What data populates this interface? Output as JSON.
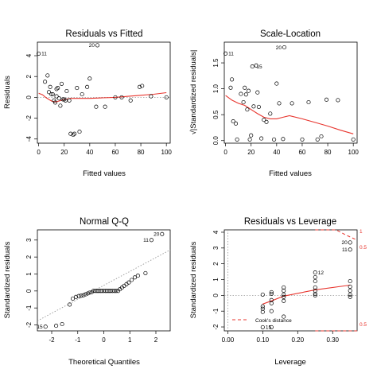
{
  "colors": {
    "fit": "#e8352e",
    "grid": "#999999",
    "frame": "#000000",
    "bg": "#ffffff"
  },
  "chart_data": [
    {
      "type": "scatter",
      "title": "Residuals vs Fitted",
      "xlabel": "Fitted values",
      "ylabel": "Residuals",
      "xlim": [
        -1,
        103
      ],
      "ylim": [
        -4.4,
        5.3
      ],
      "xticks": [
        "0",
        "20",
        "40",
        "60",
        "80",
        "100"
      ],
      "xtick_values": [
        0,
        20,
        40,
        60,
        80,
        100
      ],
      "yticks": [
        "-4",
        "-2",
        "0",
        "2",
        "4"
      ],
      "ytick_values": [
        -4,
        -2,
        0,
        2,
        4
      ],
      "hline": 0,
      "x": [
        0,
        5,
        7,
        8,
        9,
        10,
        11,
        12,
        13,
        14,
        14,
        15,
        16,
        17,
        18,
        19,
        20,
        21,
        22,
        24,
        25,
        27,
        28,
        30,
        32,
        34,
        38,
        40,
        45,
        46,
        52,
        60,
        65,
        72,
        79,
        81,
        88,
        100
      ],
      "y": [
        4.2,
        1.5,
        2.1,
        0.5,
        1.0,
        0.3,
        0.3,
        -0.3,
        -0.5,
        0.8,
        0.1,
        0.9,
        -0.1,
        -0.8,
        1.3,
        -0.2,
        -0.2,
        -0.3,
        0.6,
        -0.3,
        -3.5,
        -3.6,
        -3.5,
        0.9,
        -3.3,
        0.3,
        1.0,
        1.8,
        -0.9,
        5.0,
        -0.9,
        0.0,
        0.0,
        -0.3,
        1.0,
        1.1,
        0.1,
        0.0
      ],
      "fit_x": [
        0,
        3,
        6,
        10,
        13,
        16,
        20,
        25,
        30,
        40,
        50,
        60,
        70,
        80,
        90,
        100
      ],
      "fit_y": [
        0.4,
        0.25,
        -0.05,
        -0.35,
        -0.45,
        -0.35,
        -0.2,
        -0.1,
        -0.1,
        -0.1,
        -0.05,
        0.0,
        0.1,
        0.2,
        0.3,
        0.45
      ],
      "annotations": [
        {
          "label": "11",
          "x": 0,
          "y": 4.2,
          "side": "right"
        },
        {
          "label": "20",
          "x": 46,
          "y": 5.0,
          "side": "left"
        }
      ]
    },
    {
      "type": "scatter",
      "title": "Scale-Location",
      "xlabel": "Fitted values",
      "ylabel": "√|Standardized residuals|",
      "xlim": [
        -1,
        103
      ],
      "ylim": [
        -0.05,
        1.9
      ],
      "xticks": [
        "0",
        "20",
        "40",
        "60",
        "80",
        "100"
      ],
      "xtick_values": [
        0,
        20,
        40,
        60,
        80,
        100
      ],
      "yticks": [
        "0.0",
        "0.5",
        "1.0",
        "1.5"
      ],
      "ytick_values": [
        0,
        0.5,
        1.0,
        1.5
      ],
      "x": [
        0,
        4,
        5,
        6,
        8,
        9,
        12,
        14,
        15,
        16,
        17,
        18,
        19,
        20,
        21,
        22,
        24,
        25,
        26,
        28,
        30,
        32,
        35,
        38,
        40,
        42,
        45,
        46,
        52,
        60,
        65,
        72,
        75,
        79,
        88,
        100
      ],
      "y": [
        1.68,
        1.02,
        1.18,
        0.37,
        0.33,
        0.02,
        0.9,
        0.74,
        1.02,
        0.89,
        0.6,
        0.96,
        0.02,
        0.1,
        1.43,
        0.66,
        1.45,
        0.93,
        0.65,
        0.04,
        0.4,
        0.36,
        0.52,
        0.02,
        1.1,
        0.72,
        0.03,
        1.8,
        0.72,
        0.02,
        0.74,
        0.02,
        0.08,
        0.79,
        0.78,
        0.02
      ],
      "fit_x": [
        0,
        5,
        10,
        15,
        20,
        25,
        30,
        35,
        40,
        45,
        50,
        60,
        70,
        80,
        90,
        100
      ],
      "fit_y": [
        0.87,
        0.78,
        0.72,
        0.68,
        0.6,
        0.52,
        0.45,
        0.42,
        0.42,
        0.45,
        0.48,
        0.42,
        0.35,
        0.28,
        0.2,
        0.13
      ],
      "annotations": [
        {
          "label": "11",
          "x": 0,
          "y": 1.68,
          "side": "right"
        },
        {
          "label": "15",
          "x": 22,
          "y": 1.43,
          "side": "right"
        },
        {
          "label": "20",
          "x": 46,
          "y": 1.8,
          "side": "left"
        }
      ]
    },
    {
      "type": "scatter",
      "title": "Normal Q-Q",
      "xlabel": "Theoretical Quantiles",
      "ylabel": "Standardized residuals",
      "xlim": [
        -2.55,
        2.55
      ],
      "ylim": [
        -2.35,
        3.6
      ],
      "xticks": [
        "-2",
        "-1",
        "0",
        "1",
        "2"
      ],
      "xtick_values": [
        -2,
        -1,
        0,
        1,
        2
      ],
      "yticks": [
        "-2",
        "-1",
        "0",
        "1",
        "2",
        "3"
      ],
      "ytick_values": [
        -2,
        -1,
        0,
        1,
        2,
        3
      ],
      "x": [
        -2.24,
        -1.83,
        -1.6,
        -1.31,
        -1.19,
        -1.07,
        -0.96,
        -0.87,
        -0.78,
        -0.7,
        -0.62,
        -0.55,
        -0.47,
        -0.4,
        -0.33,
        -0.26,
        -0.2,
        -0.13,
        -0.07,
        0.0,
        0.07,
        0.13,
        0.2,
        0.26,
        0.33,
        0.4,
        0.47,
        0.55,
        0.62,
        0.7,
        0.78,
        0.87,
        0.96,
        1.07,
        1.19,
        1.31,
        1.6,
        1.83,
        2.24
      ],
      "y": [
        -2.1,
        -2.05,
        -1.95,
        -0.8,
        -0.45,
        -0.35,
        -0.3,
        -0.28,
        -0.25,
        -0.2,
        -0.15,
        -0.1,
        -0.08,
        0.0,
        0.0,
        0.0,
        0.0,
        0.0,
        0.0,
        0.0,
        0.0,
        0.0,
        0.0,
        0.0,
        0.0,
        0.0,
        0.0,
        0.0,
        0.1,
        0.2,
        0.3,
        0.4,
        0.5,
        0.65,
        0.8,
        0.9,
        1.05,
        3.0,
        3.35
      ],
      "ref_line": {
        "intercept": 0.33,
        "slope": 0.82
      },
      "annotations": [
        {
          "label": "15",
          "x": -2.24,
          "y": -2.1,
          "side": "left"
        },
        {
          "label": "11",
          "x": 1.83,
          "y": 3.0,
          "side": "left"
        },
        {
          "label": "20",
          "x": 2.24,
          "y": 3.35,
          "side": "left"
        }
      ]
    },
    {
      "type": "scatter",
      "title": "Residuals vs Leverage",
      "xlabel": "Leverage",
      "ylabel": "Standardized residuals",
      "xlim": [
        -0.01,
        0.37
      ],
      "ylim": [
        -2.25,
        4.15
      ],
      "xticks": [
        "0.00",
        "0.10",
        "0.20",
        "0.30"
      ],
      "xtick_values": [
        0.0,
        0.1,
        0.2,
        0.3
      ],
      "yticks": [
        "-2",
        "-1",
        "0",
        "1",
        "2",
        "3",
        "4"
      ],
      "ytick_values": [
        -2,
        -1,
        0,
        1,
        2,
        3,
        4
      ],
      "x": [
        0.1,
        0.1,
        0.1,
        0.1,
        0.1,
        0.125,
        0.125,
        0.125,
        0.125,
        0.125,
        0.125,
        0.16,
        0.16,
        0.16,
        0.16,
        0.16,
        0.16,
        0.25,
        0.25,
        0.25,
        0.25,
        0.25,
        0.25,
        0.25,
        0.35,
        0.35,
        0.35,
        0.35,
        0.35,
        0.35,
        0.35
      ],
      "y": [
        -0.85,
        -1.05,
        -0.7,
        0.05,
        -2.02,
        -0.5,
        -0.3,
        -1.0,
        0.1,
        0.2,
        -2.02,
        -0.35,
        -0.1,
        0.3,
        0.5,
        0.05,
        -1.35,
        1.45,
        0.5,
        0.3,
        0.1,
        0.0,
        1.15,
        0.9,
        3.35,
        2.9,
        0.3,
        0.9,
        0.55,
        0.05,
        -0.1
      ],
      "hline": 0,
      "vline": 0,
      "fit_x": [
        0.1,
        0.125,
        0.16,
        0.25,
        0.35
      ],
      "fit_y": [
        -0.55,
        -0.35,
        -0.05,
        0.35,
        0.65
      ],
      "cooks_x": [
        0.25,
        0.28,
        0.31,
        0.34,
        0.37
      ],
      "cooks_upper": [
        6.2,
        5.0,
        4.3,
        3.8,
        3.5
      ],
      "cooks_lower": [
        -6.2,
        -5.0,
        -4.3,
        -3.8,
        -3.5
      ],
      "cooks_labels": [
        "1",
        "0.5",
        "0.5"
      ],
      "legend": "Cook's distance",
      "annotations": [
        {
          "label": "12",
          "x": 0.25,
          "y": 1.45,
          "side": "right"
        },
        {
          "label": "20",
          "x": 0.35,
          "y": 3.35,
          "side": "left"
        },
        {
          "label": "11",
          "x": 0.35,
          "y": 2.9,
          "side": "left"
        },
        {
          "label": "15",
          "x": 0.1,
          "y": -2.02,
          "side": "right"
        }
      ]
    }
  ]
}
